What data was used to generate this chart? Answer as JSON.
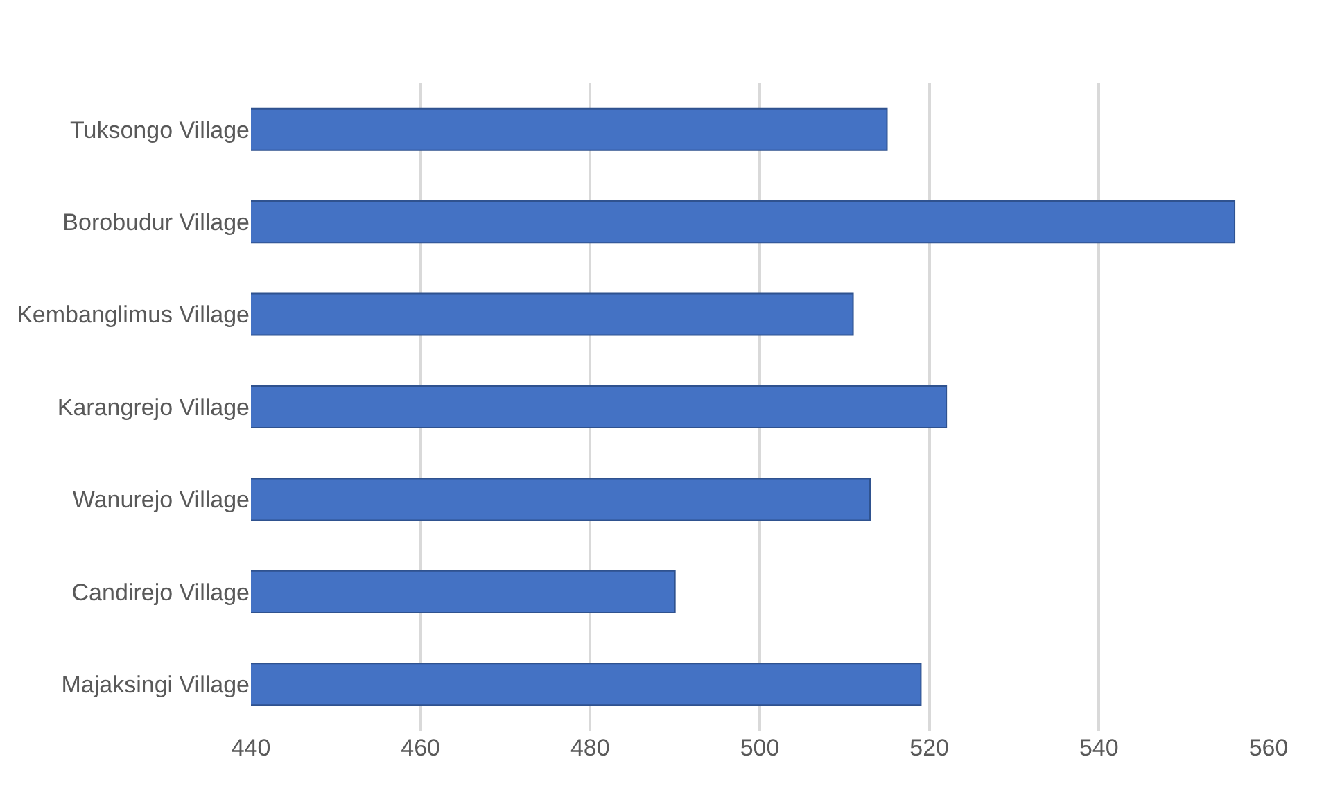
{
  "chart_data": {
    "type": "bar",
    "orientation": "horizontal",
    "categories": [
      "Tuksongo Village",
      "Borobudur Village",
      "Kembanglimus Village",
      "Karangrejo Village",
      "Wanurejo Village",
      "Candirejo Village",
      "Majaksingi Village"
    ],
    "values": [
      515,
      556,
      511,
      522,
      513,
      490,
      519
    ],
    "color": "#4472c4",
    "xlim": [
      440,
      560
    ],
    "xticks": [
      440,
      460,
      480,
      500,
      520,
      540,
      560
    ],
    "grid": "x"
  }
}
